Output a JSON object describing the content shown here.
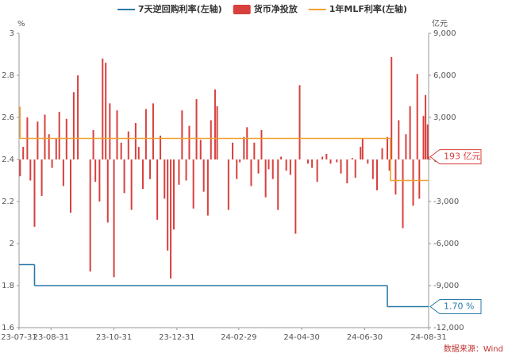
{
  "chart_data": {
    "type": "bar-line",
    "y_label": "%",
    "y2_label": "亿元",
    "source": "数据来源：Wind",
    "xlim": [
      "23-07-31",
      "24-08-31"
    ],
    "xticks": [
      "23-07-31",
      "23-08-31",
      "23-10-31",
      "23-12-31",
      "24-02-29",
      "24-04-30",
      "24-06-30",
      "24-08-31"
    ],
    "ylim": [
      1.6,
      3
    ],
    "yticks": [
      1.6,
      1.8,
      2,
      2.2,
      2.4,
      2.6,
      2.8,
      3
    ],
    "y2lim": [
      -12000,
      9000
    ],
    "y2ticks": [
      {
        "value": -12000,
        "label": "-12,000"
      },
      {
        "value": -9000,
        "label": "-9,000"
      },
      {
        "value": -6000,
        "label": "-6,000"
      },
      {
        "value": -3000,
        "label": "-3,000"
      },
      0,
      {
        "value": 3000,
        "label": "3,000"
      },
      {
        "value": 6000,
        "label": "6,000"
      },
      {
        "value": 9000,
        "label": "9,000"
      }
    ],
    "series": [
      {
        "name": "7天逆回购利率(左轴)",
        "type": "step",
        "color": "#2a7aa8",
        "axis": "y",
        "x": [
          "23-07-31",
          "23-08-15",
          "24-07-22",
          "24-08-31"
        ],
        "values": [
          1.9,
          1.8,
          1.7,
          1.7
        ],
        "end_label": "1.70 %"
      },
      {
        "name": "货币净投放",
        "type": "bar",
        "color": "#d8403e",
        "axis": "y2",
        "end_label": "193 亿元",
        "x": [
          "23-08-01",
          "23-08-04",
          "23-08-08",
          "23-08-11",
          "23-08-15",
          "23-08-18",
          "23-08-22",
          "23-08-25",
          "23-08-29",
          "23-09-01",
          "23-09-05",
          "23-09-08",
          "23-09-12",
          "23-09-15",
          "23-09-19",
          "23-09-22",
          "23-09-26",
          "23-10-08",
          "23-10-11",
          "23-10-13",
          "23-10-17",
          "23-10-20",
          "23-10-23",
          "23-10-25",
          "23-10-27",
          "23-10-31",
          "23-11-03",
          "23-11-07",
          "23-11-10",
          "23-11-14",
          "23-11-17",
          "23-11-21",
          "23-11-24",
          "23-11-28",
          "23-12-01",
          "23-12-05",
          "23-12-08",
          "23-12-12",
          "23-12-15",
          "23-12-19",
          "23-12-22",
          "23-12-25",
          "23-12-28",
          "24-01-02",
          "24-01-05",
          "24-01-09",
          "24-01-12",
          "24-01-16",
          "24-01-19",
          "24-01-23",
          "24-01-26",
          "24-01-30",
          "24-02-02",
          "24-02-06",
          "24-02-08",
          "24-02-19",
          "24-02-23",
          "24-02-27",
          "24-03-01",
          "24-03-05",
          "24-03-08",
          "24-03-12",
          "24-03-15",
          "24-03-19",
          "24-03-22",
          "24-03-26",
          "24-03-29",
          "24-04-02",
          "24-04-07",
          "24-04-10",
          "24-04-15",
          "24-04-19",
          "24-04-24",
          "24-04-28",
          "24-05-06",
          "24-05-10",
          "24-05-15",
          "24-05-20",
          "24-05-24",
          "24-05-28",
          "24-06-03",
          "24-06-07",
          "24-06-13",
          "24-06-18",
          "24-06-21",
          "24-06-26",
          "24-06-28",
          "24-07-03",
          "24-07-08",
          "24-07-12",
          "24-07-17",
          "24-07-22",
          "24-07-24",
          "24-07-26",
          "24-07-30",
          "24-08-02",
          "24-08-06",
          "24-08-09",
          "24-08-13",
          "24-08-16",
          "24-08-20",
          "24-08-22",
          "24-08-26",
          "24-08-28",
          "24-08-30",
          "24-08-31"
        ],
        "values": [
          -1200,
          900,
          3000,
          -1500,
          -4800,
          2700,
          -2600,
          3200,
          1800,
          -600,
          1500,
          3400,
          -1900,
          2900,
          -3800,
          4800,
          6000,
          -8000,
          2100,
          -1600,
          -3000,
          7200,
          6900,
          -4500,
          4000,
          -8400,
          3500,
          1200,
          -2400,
          2000,
          -3600,
          2600,
          900,
          -2100,
          3600,
          -1400,
          4000,
          -4300,
          1700,
          -2800,
          -6500,
          -8500,
          -5000,
          -1800,
          3500,
          -1500,
          2400,
          -3500,
          4300,
          1400,
          -2300,
          -4000,
          2800,
          5000,
          3800,
          -3600,
          1200,
          -1400,
          -200,
          1600,
          2300,
          -1900,
          1200,
          -1000,
          2100,
          -2700,
          -700,
          -1400,
          -3600,
          200,
          -800,
          -1100,
          -5300,
          5300,
          -300,
          -600,
          -1600,
          200,
          400,
          -300,
          -200,
          -1000,
          -1700,
          100,
          -1300,
          900,
          1500,
          -300,
          -1400,
          -2200,
          800,
          1600,
          -800,
          7300,
          -2500,
          2800,
          -4900,
          1800,
          3800,
          -3300,
          6100,
          -2800,
          3100,
          4600,
          2500,
          193
        ]
      },
      {
        "name": "1年MLF利率(左轴)",
        "type": "step",
        "color": "#f0a030",
        "axis": "y",
        "x": [
          "23-07-31",
          "23-08-01",
          "24-07-25",
          "24-08-31"
        ],
        "values": [
          2.65,
          2.5,
          2.3,
          2.3
        ]
      }
    ]
  }
}
